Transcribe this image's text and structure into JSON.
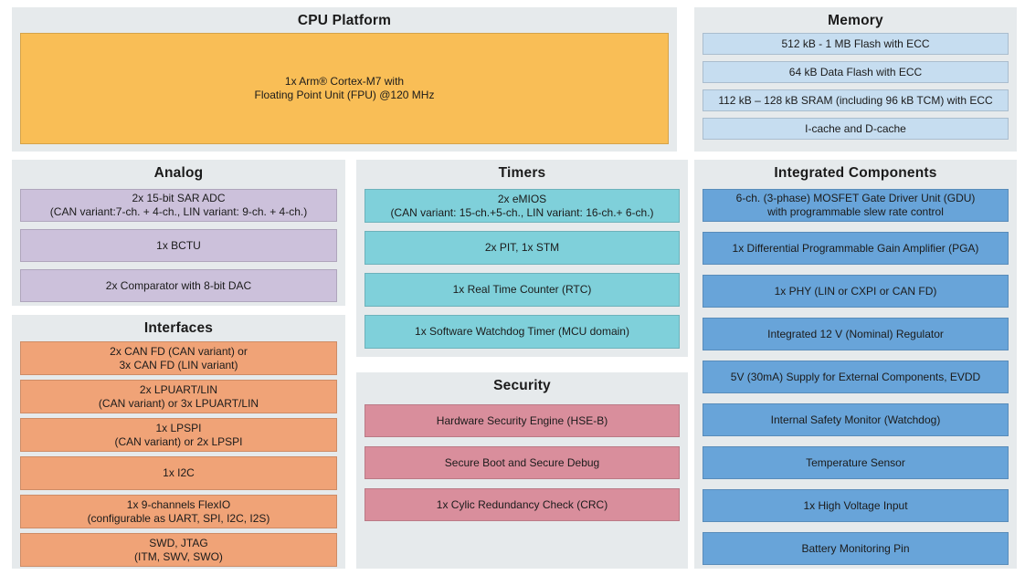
{
  "colors": {
    "panel_bg": "#E6EAEC",
    "cpu": "#F9BE56",
    "memory": "#C6DDF0",
    "analog": "#CCC1DB",
    "interfaces": "#F0A377",
    "timers": "#7FD0DA",
    "security": "#D98E9C",
    "integrated": "#68A4D9"
  },
  "sections": {
    "cpu_platform": {
      "title": "CPU Platform",
      "items": [
        "1x Arm® Cortex-M7 with\nFloating Point Unit (FPU) @120 MHz"
      ]
    },
    "memory": {
      "title": "Memory",
      "items": [
        "512 kB - 1 MB Flash with ECC",
        "64 kB Data Flash with ECC",
        "112 kB – 128 kB SRAM (including 96 kB TCM) with ECC",
        "I-cache and D-cache"
      ]
    },
    "analog": {
      "title": "Analog",
      "items": [
        "2x 15-bit SAR ADC\n(CAN variant:7-ch. + 4-ch., LIN variant: 9-ch. + 4-ch.)",
        "1x BCTU",
        "2x Comparator with 8-bit DAC"
      ]
    },
    "interfaces": {
      "title": "Interfaces",
      "items": [
        "2x CAN FD (CAN variant) or\n3x CAN FD (LIN variant)",
        "2x LPUART/LIN\n(CAN variant) or 3x LPUART/LIN",
        "1x LPSPI\n(CAN variant) or 2x LPSPI",
        "1x I2C",
        "1x 9-channels FlexIO\n(configurable as UART, SPI, I2C, I2S)",
        "SWD, JTAG\n(ITM, SWV, SWO)"
      ]
    },
    "timers": {
      "title": "Timers",
      "items": [
        "2x eMIOS\n(CAN variant: 15-ch.+5-ch., LIN variant: 16-ch.+ 6-ch.)",
        "2x PIT, 1x STM",
        "1x Real Time Counter (RTC)",
        "1x Software Watchdog Timer (MCU domain)"
      ]
    },
    "security": {
      "title": "Security",
      "items": [
        "Hardware Security Engine (HSE-B)",
        "Secure Boot and Secure Debug",
        "1x Cylic Redundancy Check (CRC)"
      ]
    },
    "integrated_components": {
      "title": "Integrated Components",
      "items": [
        "6-ch. (3-phase) MOSFET Gate Driver Unit (GDU)\nwith programmable slew rate control",
        "1x Differential Programmable Gain Amplifier (PGA)",
        "1x PHY (LIN or CXPI or CAN FD)",
        "Integrated 12 V (Nominal) Regulator",
        "5V (30mA) Supply for External Components, EVDD",
        "Internal Safety Monitor (Watchdog)",
        "Temperature Sensor",
        "1x High Voltage Input",
        "Battery Monitoring Pin"
      ]
    }
  }
}
